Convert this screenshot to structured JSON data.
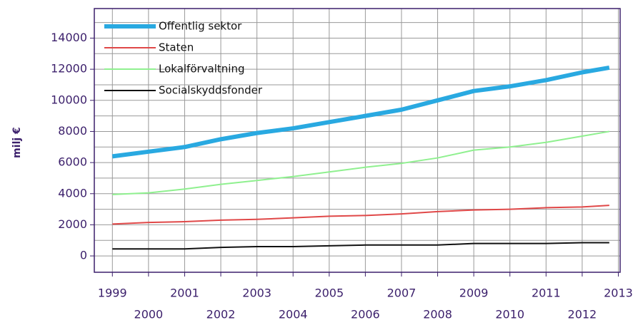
{
  "chart_data": {
    "type": "line",
    "ylabel": "milj €",
    "x": [
      1999,
      2000,
      2001,
      2002,
      2003,
      2004,
      2005,
      2006,
      2007,
      2008,
      2009,
      2010,
      2011,
      2012,
      2012.75
    ],
    "series": [
      {
        "name": "Offentlig sektor",
        "color": "#29a9e1",
        "width": 6,
        "values": [
          6400,
          6700,
          7000,
          7500,
          7900,
          8200,
          8600,
          9000,
          9400,
          10000,
          10600,
          10900,
          11300,
          11800,
          12100
        ]
      },
      {
        "name": "Staten",
        "color": "#e04848",
        "width": 2,
        "values": [
          2050,
          2150,
          2200,
          2300,
          2350,
          2450,
          2550,
          2600,
          2700,
          2850,
          2950,
          3000,
          3100,
          3150,
          3250
        ]
      },
      {
        "name": "Lokalförvaltning",
        "color": "#8ff08f",
        "width": 2,
        "values": [
          3950,
          4050,
          4300,
          4600,
          4850,
          5100,
          5400,
          5700,
          5950,
          6300,
          6800,
          7000,
          7300,
          7700,
          8000
        ]
      },
      {
        "name": "Socialskyddsfonder",
        "color": "#111111",
        "width": 2,
        "values": [
          450,
          450,
          450,
          550,
          600,
          600,
          650,
          700,
          700,
          700,
          800,
          800,
          800,
          850,
          850
        ]
      }
    ],
    "xlim": [
      1998.5,
      2013.05
    ],
    "xticks": [
      1999,
      2000,
      2001,
      2002,
      2003,
      2004,
      2005,
      2006,
      2007,
      2008,
      2009,
      2010,
      2011,
      2012,
      2013
    ],
    "ylim": [
      -1050,
      15900
    ],
    "yticks": [
      0,
      2000,
      4000,
      6000,
      8000,
      10000,
      12000,
      14000
    ],
    "yticks_minor": [
      1000,
      3000,
      5000,
      7000,
      9000,
      11000,
      13000,
      15000
    ],
    "grid": true,
    "legend": "upper left"
  }
}
